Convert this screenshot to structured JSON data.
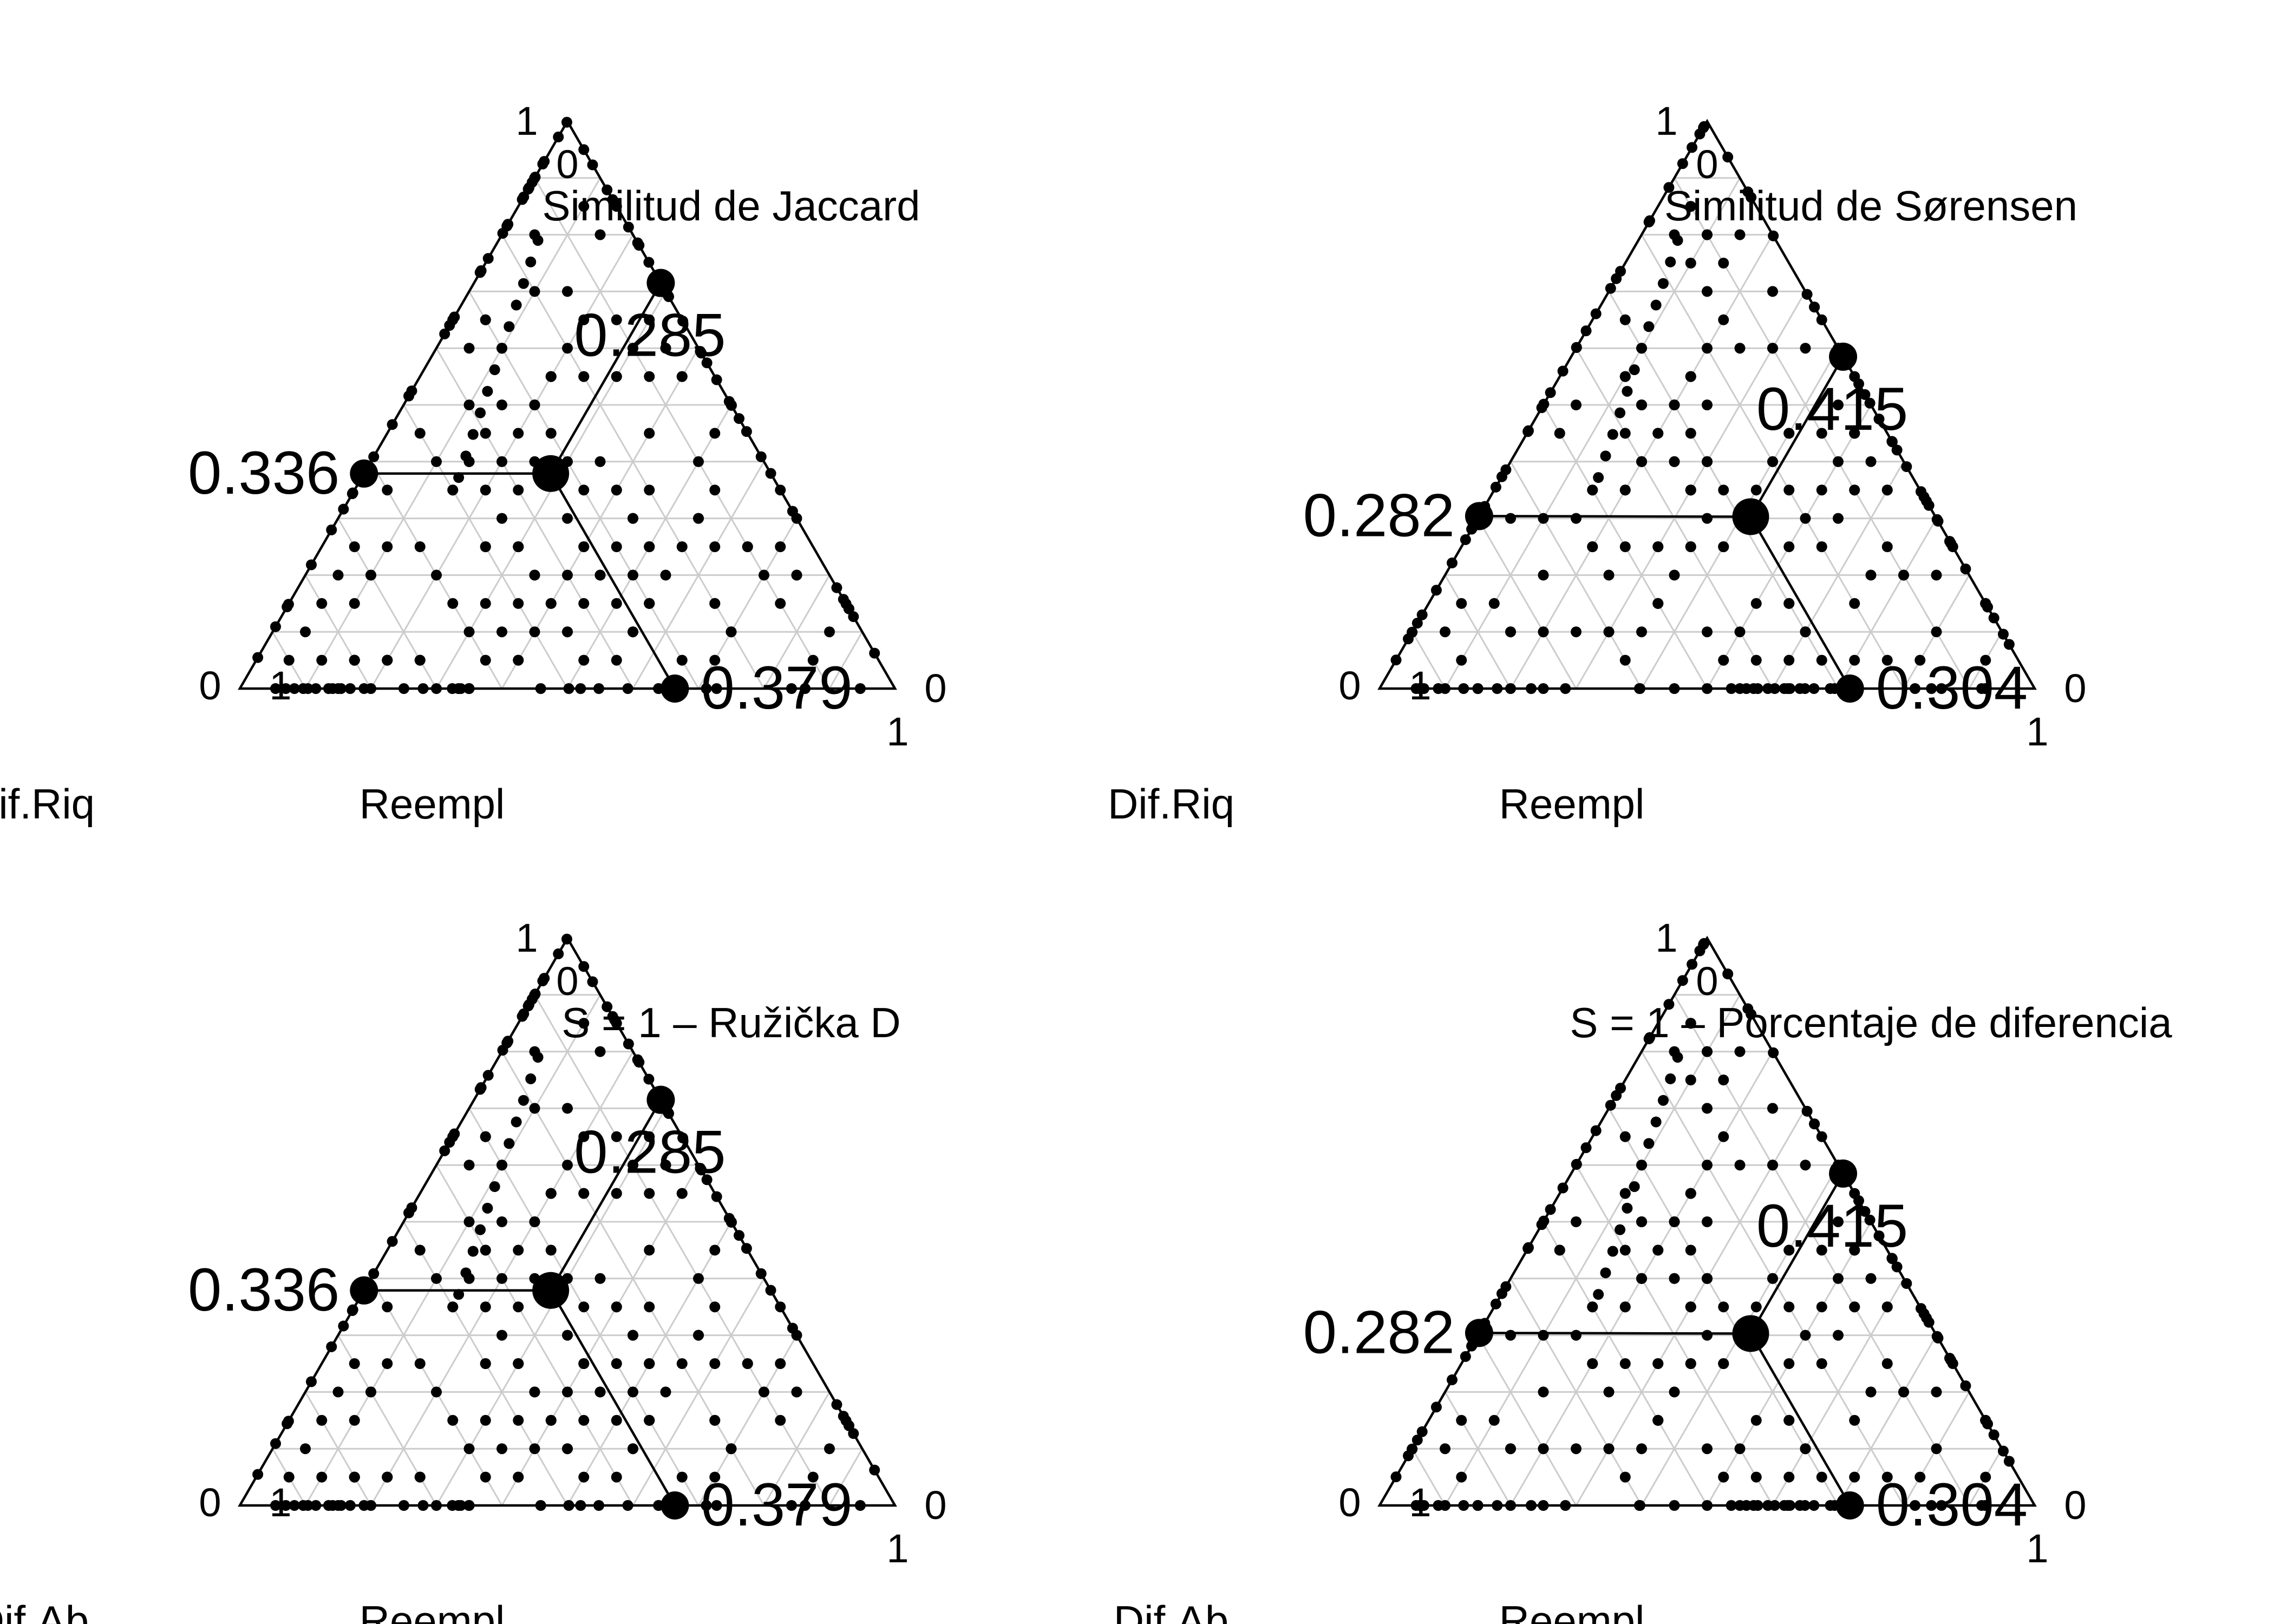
{
  "chart_data": [
    {
      "type": "scatter",
      "subtype": "ternary",
      "title": "Similitud de Jaccard",
      "axes": {
        "left": "Dif.Riq",
        "right": "Reempl",
        "bottom": "Similitud de Jaccard"
      },
      "corner_ticks": {
        "top_left": "0",
        "top_right": "1",
        "left": "1",
        "right": "0",
        "bottom_left": "0",
        "bottom_right": "1"
      },
      "mean": {
        "similarity": 0.285,
        "difference": 0.336,
        "replacement": 0.379
      },
      "mean_labels": {
        "left": "0.336",
        "right": "0.379",
        "bottom": "0.285"
      }
    },
    {
      "type": "scatter",
      "subtype": "ternary",
      "title": "Similitud de Sørensen",
      "axes": {
        "left": "Dif.Riq",
        "right": "Reempl",
        "bottom": "Similitud de Sørensen"
      },
      "corner_ticks": {
        "top_left": "0",
        "top_right": "1",
        "left": "1",
        "right": "0",
        "bottom_left": "0",
        "bottom_right": "1"
      },
      "mean": {
        "similarity": 0.415,
        "difference": 0.282,
        "replacement": 0.304
      },
      "mean_labels": {
        "left": "0.282",
        "right": "0.304",
        "bottom": "0.415"
      }
    },
    {
      "type": "scatter",
      "subtype": "ternary",
      "title": "S = 1 – Ružička D",
      "axes": {
        "left": "Dif.Ab",
        "right": "Reempl",
        "bottom": "S = 1 – Ružička D"
      },
      "corner_ticks": {
        "top_left": "0",
        "top_right": "1",
        "left": "1",
        "right": "0",
        "bottom_left": "0",
        "bottom_right": "1"
      },
      "mean": {
        "similarity": 0.285,
        "difference": 0.336,
        "replacement": 0.379
      },
      "mean_labels": {
        "left": "0.336",
        "right": "0.379",
        "bottom": "0.285"
      }
    },
    {
      "type": "scatter",
      "subtype": "ternary",
      "title": "S = 1 – Porcentaje de diferencia",
      "axes": {
        "left": "Dif.Ab",
        "right": "Reempl",
        "bottom": "S = 1 – Porcentaje de diferencia"
      },
      "corner_ticks": {
        "top_left": "0",
        "top_right": "1",
        "left": "1",
        "right": "0",
        "bottom_left": "0",
        "bottom_right": "1"
      },
      "mean": {
        "similarity": 0.415,
        "difference": 0.282,
        "replacement": 0.304
      },
      "mean_labels": {
        "left": "0.282",
        "right": "0.304",
        "bottom": "0.415"
      }
    }
  ]
}
